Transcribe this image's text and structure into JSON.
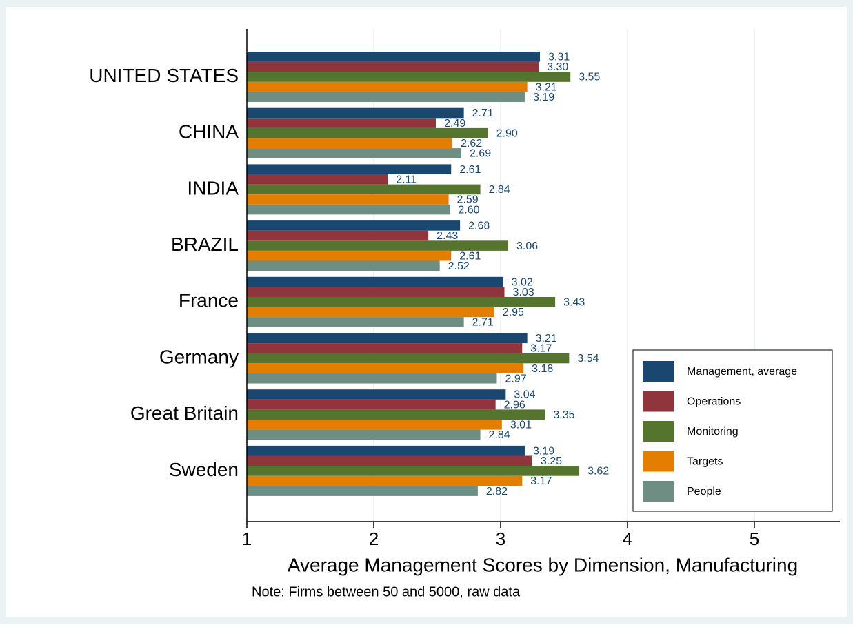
{
  "chart_data": {
    "type": "bar",
    "orientation": "horizontal",
    "categories": [
      "UNITED STATES",
      "CHINA",
      "INDIA",
      "BRAZIL",
      "France",
      "Germany",
      "Great Britain",
      "Sweden"
    ],
    "series": [
      {
        "name": "Management, average",
        "color": "#1a476f",
        "values": [
          3.31,
          2.71,
          2.61,
          2.68,
          3.02,
          3.21,
          3.04,
          3.19
        ],
        "value_labels": [
          "3.31",
          "2.71",
          "2.61",
          "2.68",
          "3.02",
          "3.21",
          "3.04",
          "3.19"
        ]
      },
      {
        "name": "Operations",
        "color": "#90353b",
        "values": [
          3.3,
          2.49,
          2.11,
          2.43,
          3.03,
          3.17,
          2.96,
          3.25
        ],
        "value_labels": [
          "3.30",
          "2.49",
          "2.11",
          "2.43",
          "3.03",
          "3.17",
          "2.96",
          "3.25"
        ]
      },
      {
        "name": "Monitoring",
        "color": "#55752f",
        "values": [
          3.55,
          2.9,
          2.84,
          3.06,
          3.43,
          3.54,
          3.35,
          3.62
        ],
        "value_labels": [
          "3.55",
          "2.90",
          "2.84",
          "3.06",
          "3.43",
          "3.54",
          "3.35",
          "3.62"
        ]
      },
      {
        "name": "Targets",
        "color": "#e37e00",
        "values": [
          3.21,
          2.62,
          2.59,
          2.61,
          2.95,
          3.18,
          3.01,
          3.17
        ],
        "value_labels": [
          "3.21",
          "2.62",
          "2.59",
          "2.61",
          "2.95",
          "3.18",
          "3.01",
          "3.17"
        ]
      },
      {
        "name": "People",
        "color": "#6e8e84",
        "values": [
          3.19,
          2.69,
          2.6,
          2.52,
          2.71,
          2.97,
          2.84,
          2.82
        ],
        "value_labels": [
          "3.19",
          "2.69",
          "2.60",
          "2.52",
          "2.71",
          "2.97",
          "2.84",
          "2.82"
        ]
      }
    ],
    "xlim": [
      1,
      5.67
    ],
    "xticks": [
      1,
      2,
      3,
      4,
      5
    ],
    "grid": true,
    "x_label": "Average Management Scores by Dimension, Manufacturing",
    "note": "Note: Firms between 50 and 5000, raw data",
    "legend": "lower right"
  }
}
